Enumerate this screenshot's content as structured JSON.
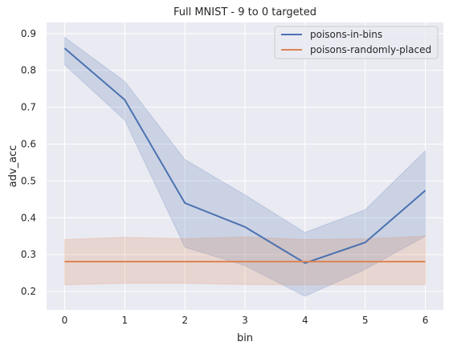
{
  "chart_data": {
    "type": "line",
    "title": "Full MNIST - 9 to 0 targeted",
    "xlabel": "bin",
    "ylabel": "adv_acc",
    "x": [
      0,
      1,
      2,
      3,
      4,
      5,
      6
    ],
    "xlim": [
      -0.3,
      6.3
    ],
    "ylim": [
      0.15,
      0.93
    ],
    "xticks": [
      "0",
      "1",
      "2",
      "3",
      "4",
      "5",
      "6"
    ],
    "yticks": [
      "0.2",
      "0.3",
      "0.4",
      "0.5",
      "0.6",
      "0.7",
      "0.8",
      "0.9"
    ],
    "grid": true,
    "legend_position": "top-right",
    "series": [
      {
        "name": "poisons-in-bins",
        "color": "#4c72b0",
        "values": [
          0.86,
          0.72,
          0.44,
          0.375,
          0.277,
          0.333,
          0.474
        ],
        "band_low": [
          0.815,
          0.665,
          0.32,
          0.27,
          0.187,
          0.26,
          0.35
        ],
        "band_high": [
          0.89,
          0.77,
          0.558,
          0.462,
          0.36,
          0.422,
          0.582
        ]
      },
      {
        "name": "poisons-randomly-placed",
        "color": "#dd8452",
        "values": [
          0.281,
          0.281,
          0.281,
          0.281,
          0.281,
          0.281,
          0.281
        ],
        "band_low": [
          0.218,
          0.222,
          0.222,
          0.219,
          0.218,
          0.218,
          0.218
        ],
        "band_high": [
          0.341,
          0.347,
          0.343,
          0.348,
          0.341,
          0.343,
          0.35
        ]
      }
    ]
  }
}
